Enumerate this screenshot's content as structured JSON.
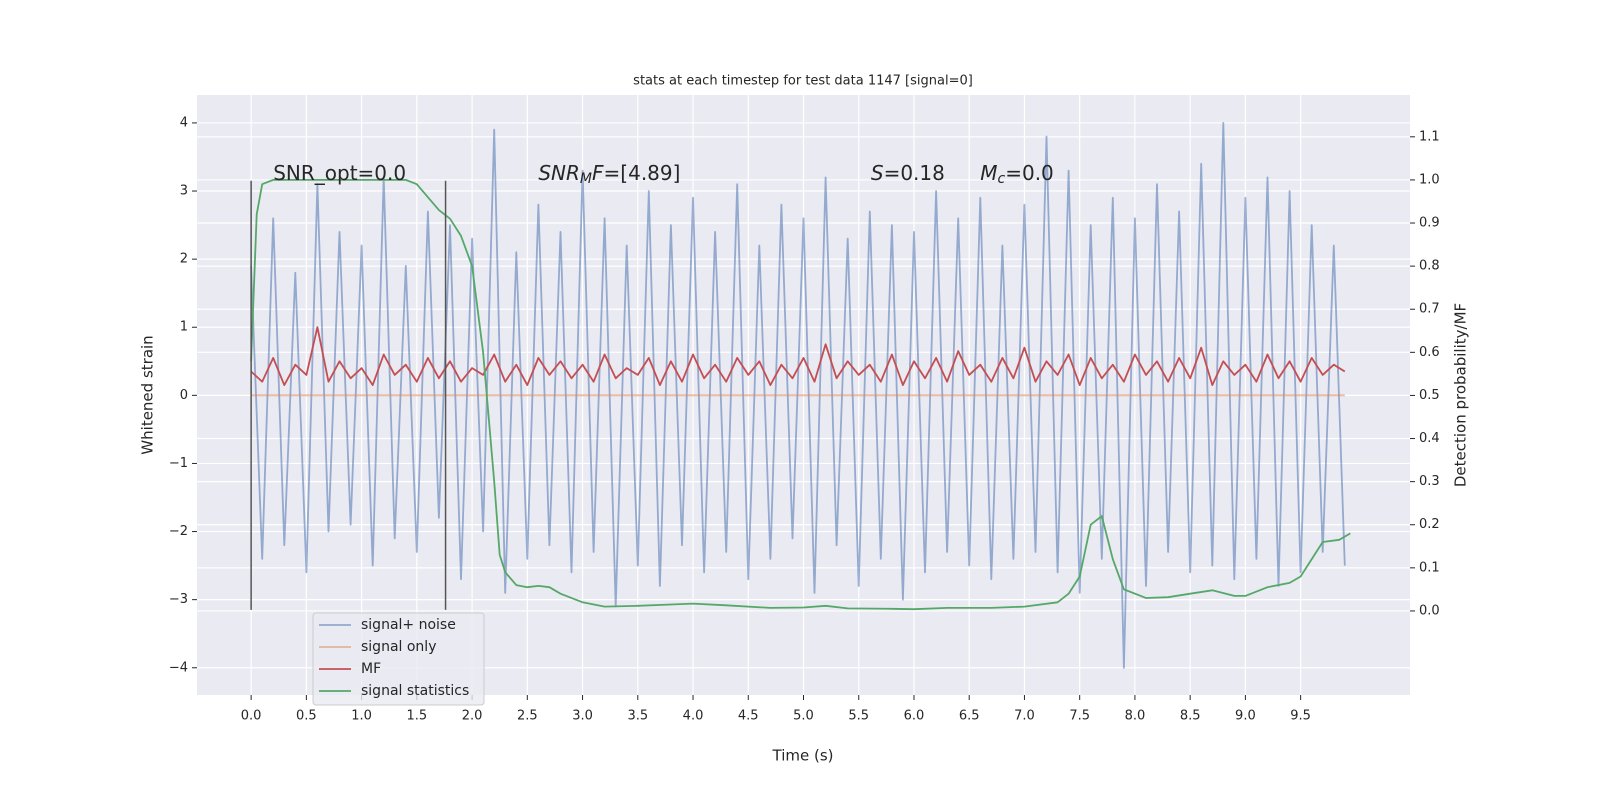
{
  "chart_data": {
    "type": "line",
    "title": "stats at each timestep for test data 1147 [signal=0]",
    "xlabel": "Time (s)",
    "ylabel": "Whitened strain",
    "y2label": "Detection probability/MF",
    "xlim": [
      -0.49,
      10.49
    ],
    "ylim": [
      -4.4,
      4.41
    ],
    "y2lim": [
      -0.195,
      1.197
    ],
    "xticks": [
      {
        "value": 0,
        "label": "0.0"
      },
      0.5,
      {
        "value": 1,
        "label": "1.0"
      },
      1.5,
      {
        "value": 2,
        "label": "2.0"
      },
      2.5,
      {
        "value": 3,
        "label": "3.0"
      },
      3.5,
      {
        "value": 4,
        "label": "4.0"
      },
      4.5,
      {
        "value": 5,
        "label": "5.0"
      },
      5.5,
      {
        "value": 6,
        "label": "6.0"
      },
      6.5,
      {
        "value": 7,
        "label": "7.0"
      },
      7.5,
      {
        "value": 8,
        "label": "8.0"
      },
      8.5,
      {
        "value": 9,
        "label": "9.0"
      },
      9.5
    ],
    "yticks": [
      {
        "value": -4,
        "label": "−4"
      },
      {
        "value": -3,
        "label": "−3"
      },
      {
        "value": -2,
        "label": "−2"
      },
      {
        "value": -1,
        "label": "−1"
      },
      0,
      1,
      2,
      3,
      4
    ],
    "y2ticks": [
      {
        "value": 0,
        "label": "0.0"
      },
      0.1,
      0.2,
      0.3,
      0.4,
      0.5,
      0.6,
      0.7,
      0.8,
      0.9,
      {
        "value": 1,
        "label": "1.0"
      },
      1.1
    ],
    "grid": true,
    "legend": "lower left",
    "vlines": [
      0,
      1.76
    ],
    "vline_range": [
      -3.15,
      3.15
    ],
    "annotations": [
      {
        "x": 0.2,
        "y": 3.25,
        "parts": [
          {
            "text": "SNR_opt=0.0"
          }
        ]
      },
      {
        "x": 2.6,
        "y": 3.25,
        "parts": [
          {
            "text": "SNR",
            "italic": true
          },
          {
            "text": "M",
            "italic": true,
            "sub": true
          },
          {
            "text": "F",
            "italic": true
          },
          {
            "text": "=[4.89]"
          }
        ]
      },
      {
        "x": 5.61,
        "y": 3.25,
        "parts": [
          {
            "text": "S",
            "italic": true
          },
          {
            "text": "=0.18"
          }
        ]
      },
      {
        "x": 6.6,
        "y": 3.25,
        "parts": [
          {
            "text": "M",
            "italic": true
          },
          {
            "text": "c",
            "italic": true,
            "sub": true
          },
          {
            "text": "=0.0"
          }
        ]
      }
    ],
    "x": [
      0,
      0.1,
      0.2,
      0.3,
      0.4,
      0.5,
      0.6,
      0.7,
      0.8,
      0.9,
      1,
      1.1,
      1.2,
      1.3,
      1.4,
      1.5,
      1.6,
      1.7,
      1.8,
      1.9,
      2,
      2.1,
      2.2,
      2.3,
      2.4,
      2.5,
      2.6,
      2.7,
      2.8,
      2.9,
      3,
      3.1,
      3.2,
      3.3,
      3.4,
      3.5,
      3.6,
      3.7,
      3.8,
      3.9,
      4,
      4.1,
      4.2,
      4.3,
      4.4,
      4.5,
      4.6,
      4.7,
      4.8,
      4.9,
      5,
      5.1,
      5.2,
      5.3,
      5.4,
      5.5,
      5.6,
      5.7,
      5.8,
      5.9,
      6,
      6.1,
      6.2,
      6.3,
      6.4,
      6.5,
      6.6,
      6.7,
      6.8,
      6.9,
      7,
      7.1,
      7.2,
      7.3,
      7.4,
      7.5,
      7.6,
      7.7,
      7.8,
      7.9,
      8,
      8.1,
      8.2,
      8.3,
      8.4,
      8.5,
      8.6,
      8.7,
      8.8,
      8.9,
      9,
      9.1,
      9.2,
      9.3,
      9.4,
      9.5,
      9.6,
      9.7,
      9.8,
      9.9
    ],
    "series": [
      {
        "name": "signal+ noise",
        "color": "#4c72b0",
        "opacity": 0.55,
        "values": [
          1.9,
          -2.4,
          2.6,
          -2.2,
          1.8,
          -2.6,
          3.1,
          -2.0,
          2.4,
          -1.9,
          2.2,
          -2.5,
          3.2,
          -2.1,
          1.9,
          -2.3,
          2.7,
          -1.8,
          2.5,
          -2.7,
          2.3,
          -2.0,
          3.9,
          -2.9,
          2.1,
          -2.4,
          2.8,
          -2.2,
          2.4,
          -2.6,
          3.3,
          -2.3,
          2.6,
          -3.1,
          2.2,
          -2.5,
          3.0,
          -2.8,
          2.5,
          -2.2,
          2.9,
          -2.6,
          2.4,
          -2.3,
          3.1,
          -2.7,
          2.2,
          -2.4,
          2.8,
          -2.1,
          2.6,
          -2.9,
          3.2,
          -2.2,
          2.3,
          -2.8,
          2.7,
          -2.4,
          2.5,
          -3.0,
          2.4,
          -2.6,
          3.0,
          -2.3,
          2.6,
          -2.5,
          2.9,
          -2.7,
          2.2,
          -2.4,
          2.8,
          -2.3,
          3.8,
          -2.6,
          3.3,
          -2.9,
          2.5,
          -2.4,
          2.9,
          -4.0,
          2.6,
          -2.8,
          3.1,
          -2.3,
          2.7,
          -2.6,
          3.4,
          -2.5,
          4.0,
          -2.7,
          2.9,
          -2.4,
          3.2,
          -2.8,
          3.0,
          -2.6,
          2.5,
          -2.3,
          2.2,
          -2.5
        ]
      },
      {
        "name": "signal only",
        "color": "#dd8452",
        "opacity": 0.55,
        "values": [
          0,
          0,
          0,
          0,
          0,
          0,
          0,
          0,
          0,
          0,
          0,
          0,
          0,
          0,
          0,
          0,
          0,
          0,
          0,
          0,
          0,
          0,
          0,
          0,
          0,
          0,
          0,
          0,
          0,
          0,
          0,
          0,
          0,
          0,
          0,
          0,
          0,
          0,
          0,
          0,
          0,
          0,
          0,
          0,
          0,
          0,
          0,
          0,
          0,
          0,
          0,
          0,
          0,
          0,
          0,
          0,
          0,
          0,
          0,
          0,
          0,
          0,
          0,
          0,
          0,
          0,
          0,
          0,
          0,
          0,
          0,
          0,
          0,
          0,
          0,
          0,
          0,
          0,
          0,
          0,
          0,
          0,
          0,
          0,
          0,
          0,
          0,
          0,
          0,
          0,
          0,
          0,
          0,
          0,
          0,
          0,
          0,
          0,
          0,
          0
        ]
      },
      {
        "name": "MF",
        "color": "#c44e52",
        "opacity": 1,
        "values": [
          0.35,
          0.2,
          0.55,
          0.15,
          0.45,
          0.3,
          1.0,
          0.2,
          0.5,
          0.25,
          0.4,
          0.15,
          0.6,
          0.3,
          0.45,
          0.2,
          0.55,
          0.25,
          0.5,
          0.2,
          0.4,
          0.3,
          0.6,
          0.2,
          0.45,
          0.15,
          0.55,
          0.3,
          0.5,
          0.25,
          0.45,
          0.2,
          0.6,
          0.25,
          0.4,
          0.3,
          0.55,
          0.15,
          0.5,
          0.2,
          0.6,
          0.25,
          0.45,
          0.2,
          0.55,
          0.3,
          0.5,
          0.15,
          0.45,
          0.25,
          0.55,
          0.2,
          0.75,
          0.25,
          0.5,
          0.3,
          0.45,
          0.2,
          0.6,
          0.15,
          0.5,
          0.25,
          0.55,
          0.2,
          0.65,
          0.3,
          0.45,
          0.2,
          0.55,
          0.25,
          0.7,
          0.2,
          0.5,
          0.3,
          0.6,
          0.15,
          0.55,
          0.25,
          0.45,
          0.2,
          0.6,
          0.3,
          0.5,
          0.2,
          0.55,
          0.25,
          0.7,
          0.15,
          0.5,
          0.3,
          0.45,
          0.2,
          0.6,
          0.25,
          0.5,
          0.2,
          0.55,
          0.3,
          0.45,
          0.35
        ]
      },
      {
        "name": "signal statistics",
        "color": "#55a868",
        "opacity": 1,
        "axis": "y2",
        "x": [
          0,
          0.05,
          0.1,
          0.2,
          0.4,
          0.8,
          1.2,
          1.4,
          1.5,
          1.6,
          1.7,
          1.8,
          1.9,
          2.0,
          2.1,
          2.2,
          2.25,
          2.3,
          2.4,
          2.5,
          2.6,
          2.7,
          2.8,
          3.0,
          3.2,
          3.5,
          3.8,
          4.0,
          4.3,
          4.7,
          5.0,
          5.2,
          5.4,
          5.8,
          6.0,
          6.3,
          6.7,
          7.0,
          7.3,
          7.4,
          7.5,
          7.6,
          7.7,
          7.8,
          7.9,
          8.1,
          8.3,
          8.5,
          8.7,
          8.9,
          9.0,
          9.2,
          9.4,
          9.5,
          9.7,
          9.85,
          9.95
        ],
        "values": [
          0.58,
          0.92,
          0.99,
          1.0,
          1.0,
          1.0,
          1.0,
          1.0,
          0.99,
          0.96,
          0.93,
          0.91,
          0.87,
          0.8,
          0.6,
          0.3,
          0.13,
          0.09,
          0.06,
          0.055,
          0.058,
          0.055,
          0.04,
          0.02,
          0.01,
          0.012,
          0.015,
          0.017,
          0.013,
          0.007,
          0.008,
          0.012,
          0.006,
          0.005,
          0.004,
          0.007,
          0.007,
          0.01,
          0.02,
          0.04,
          0.08,
          0.2,
          0.22,
          0.12,
          0.05,
          0.03,
          0.032,
          0.04,
          0.048,
          0.035,
          0.035,
          0.055,
          0.065,
          0.08,
          0.16,
          0.165,
          0.18
        ]
      }
    ]
  }
}
